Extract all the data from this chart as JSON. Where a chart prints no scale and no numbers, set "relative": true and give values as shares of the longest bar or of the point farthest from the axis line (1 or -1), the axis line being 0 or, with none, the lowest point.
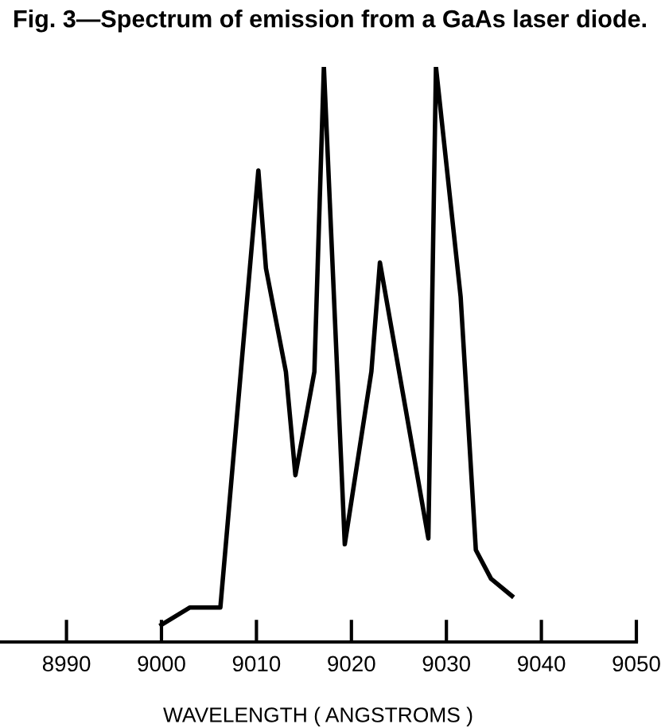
{
  "chart_data": {
    "type": "line",
    "title": "Fig. 3—Spectrum of emission from a GaAs laser diode.",
    "xlabel": "WAVELENGTH ( ANGSTROMS )",
    "relative": true,
    "color": "#000000",
    "x": [
      9000,
      9003.0,
      9006.2,
      9010.2,
      9011.0,
      9013.1,
      9014.1,
      9016.1,
      9017.1,
      9019.3,
      9022.1,
      9023.0,
      9028.1,
      9028.9,
      9031.5,
      9033.1,
      9034.7,
      9036.9
    ],
    "values": [
      0.03,
      0.06,
      0.06,
      0.82,
      0.65,
      0.47,
      0.29,
      0.47,
      1.0,
      0.17,
      0.47,
      0.66,
      0.18,
      1.0,
      0.6,
      0.16,
      0.11,
      0.08
    ],
    "xlim": [
      8983,
      9050
    ],
    "xticks": [
      8990,
      9000,
      9010,
      9020,
      9030,
      9040,
      9050
    ]
  }
}
